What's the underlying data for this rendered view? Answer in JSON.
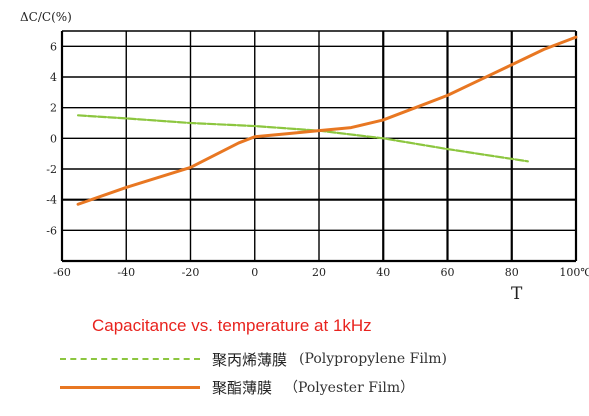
{
  "chart_data": {
    "type": "line",
    "ylabel": "ΔC/C(%)",
    "xlabel": "T",
    "x_ticks": [
      "-60",
      "-40",
      "-20",
      "0",
      "20",
      "40",
      "60",
      "80",
      "100℃"
    ],
    "y_ticks": [
      "6",
      "4",
      "2",
      "0",
      "-2",
      "-4",
      "-6"
    ],
    "xlim": [
      -60,
      100
    ],
    "ylim": [
      -8,
      7
    ],
    "grid": true,
    "series": [
      {
        "name": "聚丙烯薄膜 (Polypropylene Film)",
        "color": "#8cc63f",
        "style": "dashed",
        "x": [
          -55,
          -40,
          -20,
          0,
          20,
          40,
          60,
          85
        ],
        "y": [
          1.5,
          1.3,
          1.0,
          0.8,
          0.5,
          0.0,
          -0.7,
          -1.5
        ]
      },
      {
        "name": "聚酯薄膜 (Polyester Film)",
        "color": "#e87722",
        "style": "solid",
        "x": [
          -55,
          -40,
          -20,
          -5,
          0,
          10,
          20,
          30,
          40,
          50,
          60,
          70,
          80,
          90,
          100
        ],
        "y": [
          -4.3,
          -3.2,
          -1.9,
          -0.3,
          0.1,
          0.3,
          0.5,
          0.7,
          1.2,
          2.0,
          2.8,
          3.8,
          4.8,
          5.8,
          6.6
        ]
      }
    ]
  },
  "caption": "Capacitance vs. temperature at 1kHz",
  "legend": [
    {
      "cn": "聚丙烯薄膜",
      "en": "(Polypropylene Film)",
      "color": "#8cc63f"
    },
    {
      "cn": "聚酯薄膜",
      "en": "（Polyester Film）",
      "color": "#e87722"
    }
  ]
}
